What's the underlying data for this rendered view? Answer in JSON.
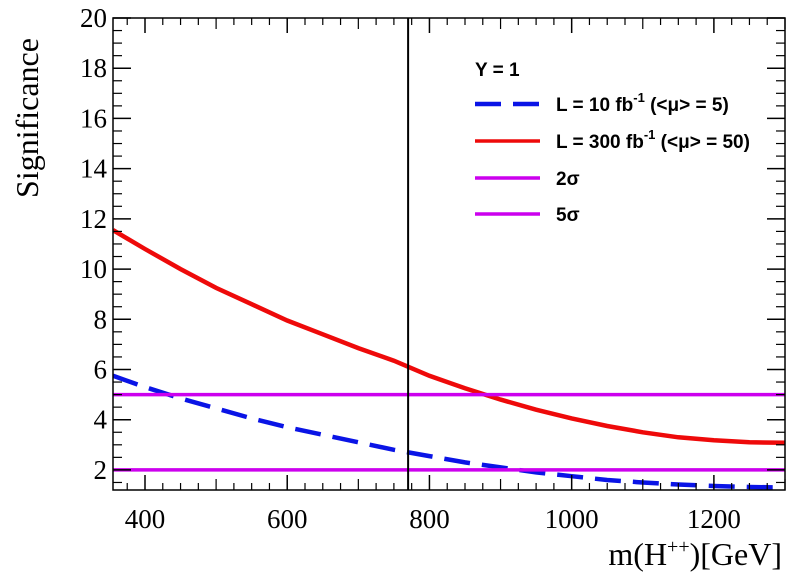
{
  "chart_data": {
    "type": "line",
    "title": "",
    "xlabel": "m(H++)[GeV]",
    "ylabel": "Significance",
    "xlim": [
      355,
      1300
    ],
    "ylim": [
      1.2,
      20
    ],
    "x_ticks": [
      400,
      600,
      800,
      1000,
      1200
    ],
    "y_ticks": [
      2,
      4,
      6,
      8,
      10,
      12,
      14,
      16,
      18,
      20
    ],
    "grid": false,
    "legend_position": "top-right",
    "legend_header": "Y = 1",
    "vertical_line_x": 770,
    "series": [
      {
        "name": "L = 10 fb-1 (<μ> = 5)",
        "color": "#0a14e6",
        "style": "dashed",
        "x": [
          355,
          400,
          450,
          500,
          550,
          600,
          650,
          700,
          750,
          800,
          850,
          900,
          950,
          1000,
          1050,
          1100,
          1150,
          1200,
          1250,
          1300
        ],
        "y": [
          5.75,
          5.3,
          4.85,
          4.45,
          4.05,
          3.7,
          3.4,
          3.1,
          2.8,
          2.55,
          2.3,
          2.1,
          1.9,
          1.75,
          1.6,
          1.5,
          1.42,
          1.36,
          1.32,
          1.3
        ]
      },
      {
        "name": "L = 300 fb-1 (<μ> = 50)",
        "color": "#ee0a0a",
        "style": "solid",
        "x": [
          355,
          400,
          450,
          500,
          550,
          600,
          650,
          700,
          750,
          800,
          850,
          900,
          950,
          1000,
          1050,
          1100,
          1150,
          1200,
          1250,
          1300
        ],
        "y": [
          11.55,
          10.8,
          10.0,
          9.25,
          8.6,
          7.95,
          7.4,
          6.85,
          6.35,
          5.75,
          5.25,
          4.8,
          4.4,
          4.05,
          3.75,
          3.5,
          3.3,
          3.18,
          3.1,
          3.08
        ]
      },
      {
        "name": "2σ",
        "color": "#cc00ee",
        "style": "solid",
        "x": [
          355,
          1300
        ],
        "y": [
          2,
          2
        ]
      },
      {
        "name": "5σ",
        "color": "#cc00ee",
        "style": "solid",
        "x": [
          355,
          1300
        ],
        "y": [
          5,
          5
        ]
      }
    ]
  },
  "legend": {
    "header": "Y = 1",
    "entries": [
      {
        "main": "L = 10 fb",
        "sup": "-1",
        "tail": " (<μ> = 5)"
      },
      {
        "main": "L = 300 fb",
        "sup": "-1",
        "tail": " (<μ> = 50)"
      },
      {
        "main": "2σ",
        "sup": "",
        "tail": ""
      },
      {
        "main": "5σ",
        "sup": "",
        "tail": ""
      }
    ]
  },
  "xlabel_parts": {
    "pre": "m(H",
    "sup": "++",
    "post": ")[GeV]"
  }
}
